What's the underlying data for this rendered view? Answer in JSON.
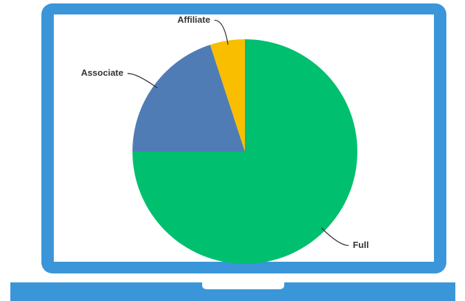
{
  "chart_data": {
    "type": "pie",
    "categories": [
      "Full",
      "Associate",
      "Affiliate"
    ],
    "values": [
      75,
      20,
      5
    ],
    "colors": [
      "#00bf6f",
      "#507cb6",
      "#f9be00"
    ]
  }
}
